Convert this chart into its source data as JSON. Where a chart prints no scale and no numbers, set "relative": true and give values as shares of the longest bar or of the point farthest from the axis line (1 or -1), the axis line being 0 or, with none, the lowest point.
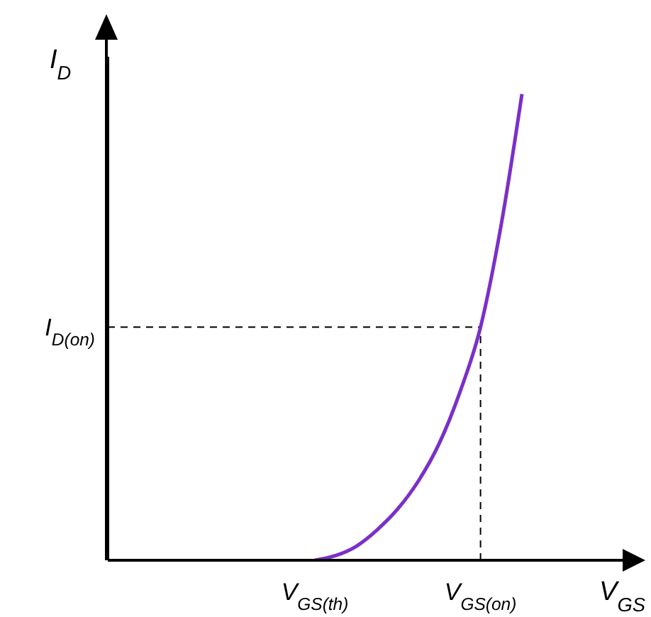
{
  "chart_data": {
    "type": "line",
    "relative": true,
    "xlabel": "V$_{GS}$",
    "ylabel": "I$_{D}$",
    "categories": [
      null,
      null,
      null,
      null,
      null,
      null,
      null,
      null,
      null,
      null,
      "V$_{GS(th)}$",
      null,
      null,
      null,
      null,
      null,
      null,
      null,
      "V$_{GS(on)}$",
      null,
      null,
      null,
      null,
      null,
      null,
      null
    ],
    "series": [
      {
        "color": "#7b2fc9",
        "values": [
          null,
          null,
          null,
          null,
          null,
          null,
          null,
          null,
          null,
          null,
          0,
          0.01,
          0.03,
          0.065,
          0.11,
          0.17,
          0.25,
          0.36,
          0.5,
          0.72,
          1,
          null,
          null,
          null,
          null,
          null
        ]
      }
    ],
    "ref_lines": [
      {
        "axis": "y",
        "value": 0.5,
        "label": "I$_{D(on)}$",
        "line_style": "dashed"
      },
      {
        "axis": "x",
        "value": "V$_{GS(on)}$",
        "line_style": "dashed"
      }
    ],
    "marker": "none",
    "line_style": "solid"
  }
}
